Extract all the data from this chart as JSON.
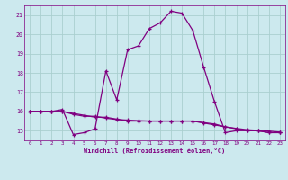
{
  "xlabel": "Windchill (Refroidissement éolien,°C)",
  "x_ticks": [
    0,
    1,
    2,
    3,
    4,
    5,
    6,
    7,
    8,
    9,
    10,
    11,
    12,
    13,
    14,
    15,
    16,
    17,
    18,
    19,
    20,
    21,
    22,
    23
  ],
  "y_ticks": [
    15,
    16,
    17,
    18,
    19,
    20,
    21
  ],
  "ylim": [
    14.5,
    21.5
  ],
  "xlim": [
    -0.5,
    23.5
  ],
  "bg_color": "#cce9ee",
  "line_color": "#800080",
  "grid_color": "#aacfcf",
  "curve1_x": [
    0,
    1,
    2,
    3,
    4,
    5,
    6,
    7,
    8,
    9,
    10,
    11,
    12,
    13,
    14,
    15,
    16,
    17,
    18,
    19,
    20,
    21,
    22,
    23
  ],
  "curve1_y": [
    16.0,
    16.0,
    16.0,
    16.1,
    14.8,
    14.9,
    15.1,
    18.1,
    16.6,
    19.2,
    19.4,
    20.3,
    20.6,
    21.2,
    21.1,
    20.2,
    18.3,
    16.5,
    14.9,
    15.0,
    15.0,
    15.0,
    14.9,
    14.9
  ],
  "curve2_x": [
    0,
    1,
    2,
    3,
    4,
    5,
    6,
    7,
    8,
    9,
    10,
    11,
    12,
    13,
    14,
    15,
    16,
    17,
    18,
    19,
    20,
    21,
    22,
    23
  ],
  "curve2_y": [
    16.0,
    16.0,
    16.0,
    16.0,
    15.9,
    15.8,
    15.7,
    15.7,
    15.6,
    15.5,
    15.5,
    15.5,
    15.5,
    15.5,
    15.5,
    15.5,
    15.4,
    15.3,
    15.2,
    15.1,
    15.0,
    15.0,
    14.9,
    14.9
  ],
  "curve3_x": [
    0,
    1,
    2,
    3,
    4,
    5,
    6,
    7,
    8,
    9,
    10,
    11,
    12,
    13,
    14,
    15,
    16,
    17,
    18,
    19,
    20,
    21,
    22,
    23
  ],
  "curve3_y": [
    16.0,
    16.0,
    16.0,
    16.0,
    15.85,
    15.75,
    15.75,
    15.65,
    15.58,
    15.55,
    15.52,
    15.5,
    15.5,
    15.5,
    15.5,
    15.5,
    15.42,
    15.35,
    15.2,
    15.12,
    15.05,
    15.02,
    14.98,
    14.93
  ]
}
